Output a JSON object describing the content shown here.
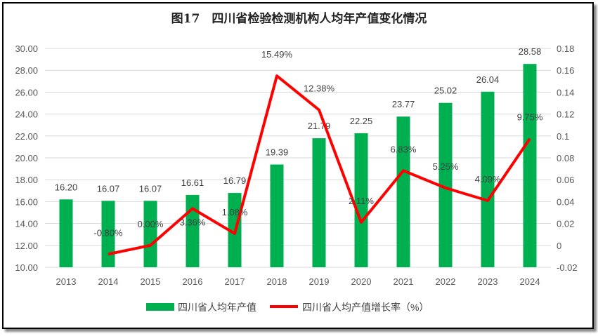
{
  "chart_data": {
    "type": "bar+line",
    "title": "图17　四川省检验检测机构人均年产值变化情况",
    "categories": [
      "2013",
      "2014",
      "2015",
      "2016",
      "2017",
      "2018",
      "2019",
      "2020",
      "2021",
      "2022",
      "2023",
      "2024"
    ],
    "series": [
      {
        "name": "四川省人均年产值",
        "type": "bar",
        "axis": "left",
        "color": "#00b050",
        "values": [
          16.2,
          16.07,
          16.07,
          16.61,
          16.79,
          19.39,
          21.79,
          22.25,
          23.77,
          25.02,
          26.04,
          28.58
        ],
        "labels": [
          "16.20",
          "16.07",
          "16.07",
          "16.61",
          "16.79",
          "19.39",
          "21.79",
          "22.25",
          "23.77",
          "25.02",
          "26.04",
          "28.58"
        ]
      },
      {
        "name": "四川省人均产值增长率（%）",
        "type": "line",
        "axis": "right",
        "color": "#ff0000",
        "values": [
          null,
          -0.008,
          0.0,
          0.0336,
          0.0108,
          0.1549,
          0.1238,
          0.0211,
          0.0683,
          0.0525,
          0.0409,
          0.0975
        ],
        "labels": [
          "",
          "-0.80%",
          "0.00%",
          "3.36%",
          "1.08%",
          "15.49%",
          "12.38%",
          "2.11%",
          "6.83%",
          "5.25%",
          "4.09%",
          "9.75%"
        ]
      }
    ],
    "ylim_left": [
      10,
      30
    ],
    "yticks_left": [
      "10.00",
      "12.00",
      "14.00",
      "16.00",
      "18.00",
      "20.00",
      "22.00",
      "24.00",
      "26.00",
      "28.00",
      "30.00"
    ],
    "ylim_right": [
      -0.02,
      0.18
    ],
    "yticks_right": [
      "-0.02",
      "0",
      "0.02",
      "0.04",
      "0.06",
      "0.08",
      "0.1",
      "0.12",
      "0.14",
      "0.16",
      "0.18"
    ],
    "grid": true,
    "legend": "bottom"
  }
}
